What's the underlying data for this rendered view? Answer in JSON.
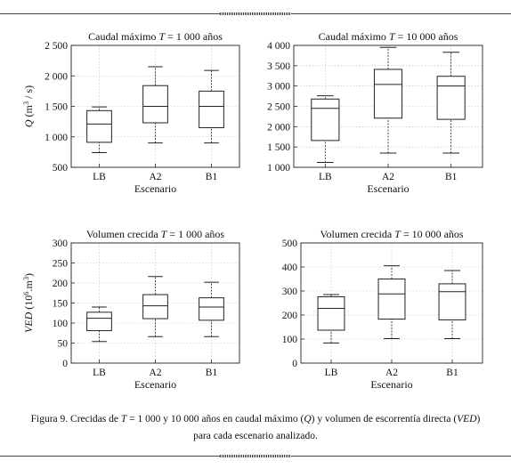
{
  "figure": {
    "caption_line1_parts": [
      {
        "t": "Figura 9. Crecidas de ",
        "i": false
      },
      {
        "t": "T",
        "i": true
      },
      {
        "t": " = 1 000 y 10 000 años en caudal máximo (",
        "i": false
      },
      {
        "t": "Q",
        "i": true
      },
      {
        "t": ") y volumen de escorrentía directa (",
        "i": false
      },
      {
        "t": "VED",
        "i": true
      },
      {
        "t": ")",
        "i": false
      }
    ],
    "caption_line2": "para cada escenario analizado."
  },
  "chart_data": [
    {
      "type": "box",
      "title_parts": [
        {
          "t": "Caudal máximo ",
          "i": false
        },
        {
          "t": "T",
          "i": true
        },
        {
          "t": " = 1 000 años",
          "i": false
        }
      ],
      "ylabel_parts": [
        {
          "t": "Q",
          "i": true
        },
        {
          "t": " (m",
          "i": false
        },
        {
          "t": "3",
          "i": false,
          "sup": true
        },
        {
          "t": " / s)",
          "i": false
        }
      ],
      "xlabel": "Escenario",
      "categories": [
        "LB",
        "A2",
        "B1"
      ],
      "ylim": [
        500,
        2500
      ],
      "yticks": [
        500,
        1000,
        1500,
        2000,
        2500
      ],
      "ytick_labels": [
        "500",
        "1 000",
        "1 500",
        "2 000",
        "2 500"
      ],
      "grid": true,
      "boxes": [
        {
          "min": 740,
          "q1": 910,
          "median": 1210,
          "q3": 1430,
          "max": 1490
        },
        {
          "min": 900,
          "q1": 1230,
          "median": 1500,
          "q3": 1840,
          "max": 2150
        },
        {
          "min": 900,
          "q1": 1150,
          "median": 1500,
          "q3": 1750,
          "max": 2090
        }
      ]
    },
    {
      "type": "box",
      "title_parts": [
        {
          "t": "Caudal máximo ",
          "i": false
        },
        {
          "t": "T",
          "i": true
        },
        {
          "t": " = 10 000 años",
          "i": false
        }
      ],
      "ylabel_parts": [],
      "xlabel": "Escenario",
      "categories": [
        "LB",
        "A2",
        "B1"
      ],
      "ylim": [
        1000,
        4000
      ],
      "yticks": [
        1000,
        1500,
        2000,
        2500,
        3000,
        3500,
        4000
      ],
      "ytick_labels": [
        "1 000",
        "1 500",
        "2 000",
        "2 500",
        "3 000",
        "3 500",
        "4 000"
      ],
      "grid": true,
      "boxes": [
        {
          "min": 1120,
          "q1": 1660,
          "median": 2450,
          "q3": 2680,
          "max": 2760
        },
        {
          "min": 1350,
          "q1": 2210,
          "median": 3040,
          "q3": 3410,
          "max": 3950
        },
        {
          "min": 1350,
          "q1": 2180,
          "median": 3000,
          "q3": 3240,
          "max": 3830
        }
      ]
    },
    {
      "type": "box",
      "title_parts": [
        {
          "t": "Volumen crecida ",
          "i": false
        },
        {
          "t": "T",
          "i": true
        },
        {
          "t": " = 1 000  años",
          "i": false
        }
      ],
      "ylabel_parts": [
        {
          "t": "VED",
          "i": true
        },
        {
          "t": " (10",
          "i": false
        },
        {
          "t": "6",
          "i": false,
          "sup": true
        },
        {
          "t": ".m",
          "i": false
        },
        {
          "t": "3",
          "i": false,
          "sup": true
        },
        {
          "t": ")",
          "i": false
        }
      ],
      "xlabel": "Escenario",
      "categories": [
        "LB",
        "A2",
        "B1"
      ],
      "ylim": [
        0,
        300
      ],
      "yticks": [
        0,
        50,
        100,
        150,
        200,
        250,
        300
      ],
      "ytick_labels": [
        "0",
        "50",
        "100",
        "150",
        "200",
        "250",
        "300"
      ],
      "grid": true,
      "boxes": [
        {
          "min": 54,
          "q1": 81,
          "median": 112,
          "q3": 127,
          "max": 140
        },
        {
          "min": 66,
          "q1": 111,
          "median": 143,
          "q3": 171,
          "max": 216
        },
        {
          "min": 66,
          "q1": 107,
          "median": 140,
          "q3": 163,
          "max": 202
        }
      ]
    },
    {
      "type": "box",
      "title_parts": [
        {
          "t": "Volumen crecida ",
          "i": false
        },
        {
          "t": "T",
          "i": true
        },
        {
          "t": " = 10 000  años",
          "i": false
        }
      ],
      "ylabel_parts": [],
      "xlabel": "Escenario",
      "categories": [
        "LB",
        "A2",
        "B1"
      ],
      "ylim": [
        0,
        500
      ],
      "yticks": [
        0,
        100,
        200,
        300,
        400,
        500
      ],
      "ytick_labels": [
        "0",
        "100",
        "200",
        "300",
        "400",
        "500"
      ],
      "grid": true,
      "boxes": [
        {
          "min": 84,
          "q1": 137,
          "median": 228,
          "q3": 276,
          "max": 285
        },
        {
          "min": 102,
          "q1": 183,
          "median": 288,
          "q3": 350,
          "max": 405
        },
        {
          "min": 102,
          "q1": 180,
          "median": 297,
          "q3": 330,
          "max": 385
        }
      ]
    }
  ]
}
